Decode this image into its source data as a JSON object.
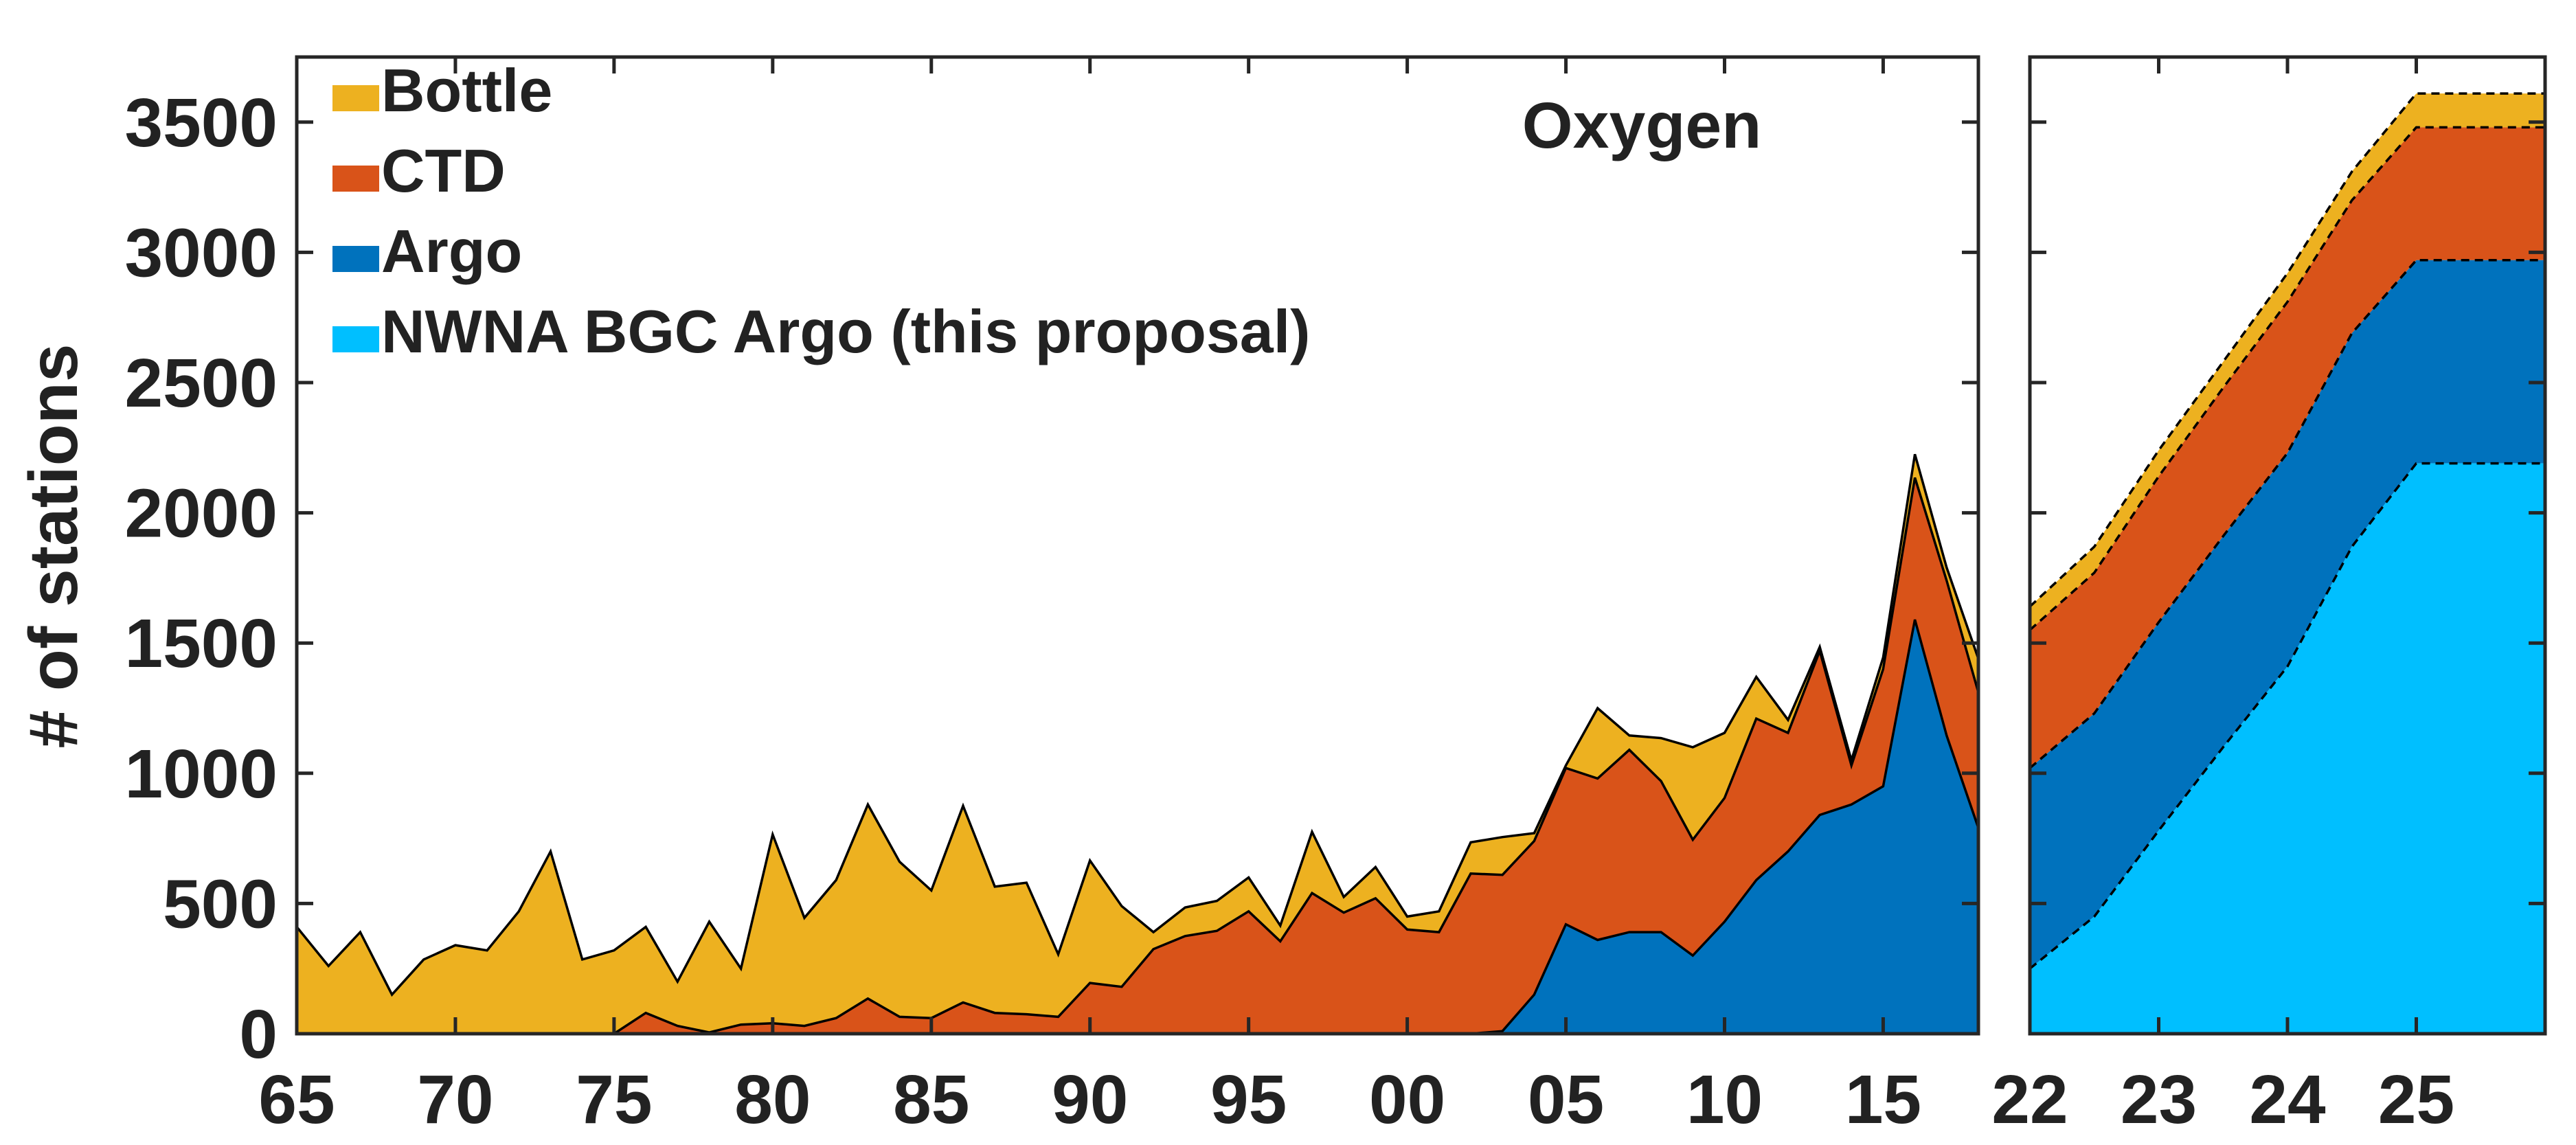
{
  "colors": {
    "bottle": "#EDB120",
    "ctd": "#D95319",
    "argo": "#0072BD",
    "nwna": "#00BFFF"
  },
  "chart_data": [
    {
      "type": "area",
      "title": "Oxygen",
      "xlabel": "",
      "ylabel": "# of stations",
      "ylim": [
        0,
        3750
      ],
      "xlim": [
        1965,
        2018
      ],
      "grid": false,
      "legend_position": "top-left",
      "xticks": [
        1965,
        1970,
        1975,
        1980,
        1985,
        1990,
        1995,
        2000,
        2005,
        2010,
        2015
      ],
      "xtick_labels": [
        "65",
        "70",
        "75",
        "80",
        "85",
        "90",
        "95",
        "00",
        "05",
        "10",
        "15"
      ],
      "yticks": [
        0,
        500,
        1000,
        1500,
        2000,
        2500,
        3000,
        3500
      ],
      "ytick_labels": [
        "0",
        "500",
        "1000",
        "1500",
        "2000",
        "2500",
        "3000",
        "3500"
      ],
      "x": [
        1965,
        1966,
        1967,
        1968,
        1969,
        1970,
        1971,
        1972,
        1973,
        1974,
        1975,
        1976,
        1977,
        1978,
        1979,
        1980,
        1981,
        1982,
        1983,
        1984,
        1985,
        1986,
        1987,
        1988,
        1989,
        1990,
        1991,
        1992,
        1993,
        1994,
        1995,
        1996,
        1997,
        1998,
        1999,
        2000,
        2001,
        2002,
        2003,
        2004,
        2005,
        2006,
        2007,
        2008,
        2009,
        2010,
        2011,
        2012,
        2013,
        2014,
        2015,
        2016,
        2017,
        2018
      ],
      "series": [
        {
          "name": "Bottle",
          "color_key": "bottle",
          "cumulative": [
            410,
            260,
            390,
            150,
            285,
            340,
            320,
            470,
            700,
            285,
            320,
            410,
            200,
            430,
            250,
            765,
            445,
            590,
            880,
            660,
            550,
            875,
            565,
            580,
            305,
            665,
            490,
            390,
            485,
            510,
            600,
            415,
            775,
            525,
            640,
            450,
            470,
            735,
            755,
            770,
            1030,
            1250,
            1145,
            1135,
            1100,
            1155,
            1370,
            1205,
            1485,
            1050,
            1445,
            2225,
            1790,
            1440
          ],
          "values": [
            410,
            260,
            390,
            150,
            285,
            340,
            320,
            470,
            700,
            285,
            320,
            330,
            170,
            425,
            215,
            725,
            415,
            530,
            745,
            595,
            490,
            755,
            485,
            505,
            240,
            470,
            310,
            65,
            110,
            115,
            130,
            60,
            235,
            60,
            120,
            50,
            80,
            120,
            145,
            30,
            10,
            230,
            55,
            165,
            355,
            250,
            160,
            50,
            0,
            0,
            0,
            90,
            0,
            130
          ]
        },
        {
          "name": "CTD",
          "color_key": "ctd",
          "cumulative": [
            0,
            0,
            0,
            0,
            0,
            0,
            0,
            0,
            0,
            0,
            0,
            80,
            30,
            5,
            35,
            40,
            30,
            60,
            135,
            65,
            60,
            120,
            80,
            75,
            65,
            195,
            180,
            325,
            375,
            395,
            470,
            355,
            540,
            465,
            520,
            400,
            390,
            615,
            610,
            740,
            1020,
            980,
            1090,
            970,
            745,
            905,
            1210,
            1155,
            1470,
            1030,
            1400,
            2135,
            1740,
            1310
          ],
          "values": [
            0,
            0,
            0,
            0,
            0,
            0,
            0,
            0,
            0,
            0,
            0,
            80,
            30,
            5,
            35,
            40,
            30,
            60,
            135,
            65,
            60,
            120,
            80,
            75,
            65,
            195,
            180,
            325,
            375,
            395,
            470,
            355,
            540,
            465,
            520,
            400,
            390,
            615,
            600,
            590,
            600,
            620,
            700,
            580,
            445,
            475,
            620,
            465,
            630,
            150,
            450,
            545,
            595,
            520
          ]
        },
        {
          "name": "Argo",
          "color_key": "argo",
          "cumulative": [
            0,
            0,
            0,
            0,
            0,
            0,
            0,
            0,
            0,
            0,
            0,
            0,
            0,
            0,
            0,
            0,
            0,
            0,
            0,
            0,
            0,
            0,
            0,
            0,
            0,
            0,
            0,
            0,
            0,
            0,
            0,
            0,
            0,
            0,
            0,
            0,
            0,
            0,
            10,
            150,
            420,
            360,
            390,
            390,
            300,
            430,
            590,
            700,
            840,
            880,
            950,
            1590,
            1145,
            790
          ],
          "values": [
            0,
            0,
            0,
            0,
            0,
            0,
            0,
            0,
            0,
            0,
            0,
            0,
            0,
            0,
            0,
            0,
            0,
            0,
            0,
            0,
            0,
            0,
            0,
            0,
            0,
            0,
            0,
            0,
            0,
            0,
            0,
            0,
            0,
            0,
            0,
            0,
            0,
            0,
            10,
            150,
            420,
            360,
            390,
            390,
            300,
            430,
            590,
            700,
            840,
            880,
            950,
            1590,
            1145,
            790
          ]
        }
      ]
    },
    {
      "type": "area",
      "title": "",
      "xlabel": "",
      "ylabel": "",
      "ylim": [
        0,
        3750
      ],
      "xlim": [
        2022,
        2026
      ],
      "grid": false,
      "outline_style": "dashed",
      "xticks": [
        2022,
        2023,
        2024,
        2025
      ],
      "xtick_labels": [
        "22",
        "23",
        "24",
        "25"
      ],
      "x": [
        2022,
        2022.5,
        2023,
        2023.5,
        2024,
        2024.5,
        2025,
        2025.5,
        2026
      ],
      "series": [
        {
          "name": "Bottle",
          "color_key": "bottle",
          "cumulative": [
            1640,
            1870,
            2240,
            2580,
            2920,
            3310,
            3610,
            3610,
            3610
          ],
          "values": [
            90,
            100,
            100,
            100,
            110,
            110,
            130,
            130,
            130
          ]
        },
        {
          "name": "CTD",
          "color_key": "ctd",
          "cumulative": [
            1550,
            1770,
            2140,
            2480,
            2810,
            3200,
            3480,
            3480,
            3480
          ],
          "values": [
            530,
            540,
            560,
            570,
            580,
            510,
            510,
            510,
            510
          ]
        },
        {
          "name": "Argo",
          "color_key": "argo",
          "cumulative": [
            1020,
            1230,
            1580,
            1910,
            2230,
            2690,
            2970,
            2970,
            2970
          ],
          "values": [
            770,
            780,
            800,
            810,
            820,
            820,
            780,
            780,
            780
          ]
        },
        {
          "name": "NWNA BGC Argo (this proposal)",
          "color_key": "nwna",
          "cumulative": [
            250,
            450,
            780,
            1100,
            1410,
            1870,
            2190,
            2190,
            2190
          ],
          "values": [
            250,
            450,
            780,
            1100,
            1410,
            1870,
            2190,
            2190,
            2190
          ]
        }
      ]
    }
  ],
  "legend": [
    {
      "label": "Bottle",
      "color_key": "bottle"
    },
    {
      "label": "CTD",
      "color_key": "ctd"
    },
    {
      "label": "Argo",
      "color_key": "argo"
    },
    {
      "label": "NWNA BGC Argo (this proposal)",
      "color_key": "nwna"
    }
  ]
}
